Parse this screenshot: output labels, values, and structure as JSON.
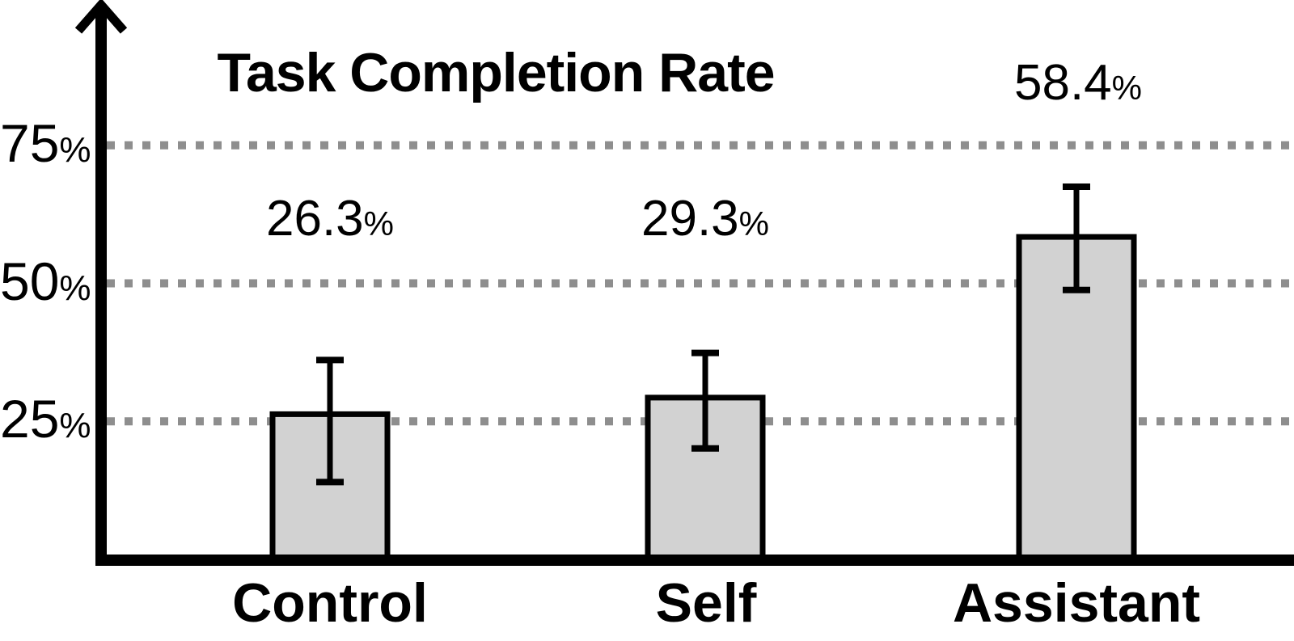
{
  "chart_data": {
    "type": "bar",
    "title": "Task Completion Rate",
    "categories": [
      "Control",
      "Self",
      "Assistant"
    ],
    "values": [
      26.3,
      29.3,
      58.4
    ],
    "value_labels": [
      "26.3",
      "29.3",
      "58.4"
    ],
    "error_low": [
      14.0,
      20.1,
      48.8
    ],
    "error_high": [
      36.1,
      37.4,
      67.5
    ],
    "unit": "%",
    "y_ticks": [
      25,
      50,
      75
    ],
    "y_tick_labels": [
      "25",
      "50",
      "75"
    ],
    "ylim": [
      0,
      80
    ],
    "grid": "horizontal-dotted",
    "legend": "none",
    "colors": {
      "bar_fill": "#d2d2d2",
      "bar_border": "#000000",
      "grid_color": "#8e8e8e",
      "axis_color": "#000000",
      "text_color": "#000000",
      "background": "#ffffff"
    }
  }
}
